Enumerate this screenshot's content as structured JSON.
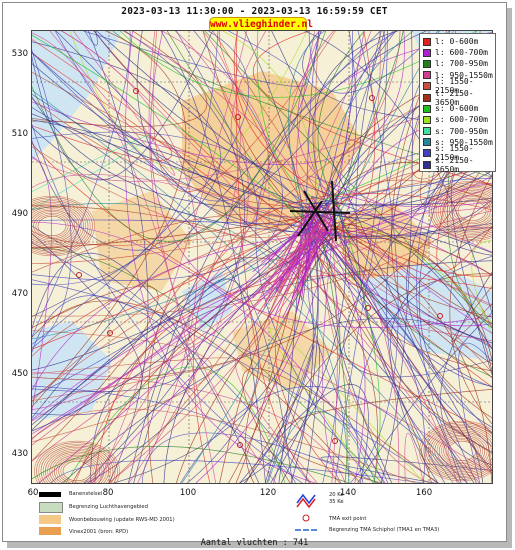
{
  "header": {
    "period": "2023-03-13 11:30:00 - 2023-03-13 16:59:59 CET",
    "site": "www.vlieghinder.nl"
  },
  "axes": {
    "y_ticks": [
      "530",
      "510",
      "490",
      "470",
      "450",
      "430"
    ],
    "x_ticks": [
      "60",
      "80",
      "100",
      "120",
      "140",
      "160"
    ]
  },
  "legend": [
    {
      "label": "l: 0-600m",
      "color": "#e02020"
    },
    {
      "label": "l: 600-700m",
      "color": "#b020d0"
    },
    {
      "label": "l: 700-950m",
      "color": "#208020"
    },
    {
      "label": "l: 950-1550m",
      "color": "#d04090"
    },
    {
      "label": "l: 1550-2150m",
      "color": "#c85040"
    },
    {
      "label": "l: 2150-3650m",
      "color": "#a03018"
    },
    {
      "label": "s: 0-600m",
      "color": "#20c020"
    },
    {
      "label": "s: 600-700m",
      "color": "#a0e020"
    },
    {
      "label": "s: 700-950m",
      "color": "#40e0a0"
    },
    {
      "label": "s: 950-1550m",
      "color": "#208898"
    },
    {
      "label": "s: 1550-2150m",
      "color": "#4040c0"
    },
    {
      "label": "s: 2150-3650m",
      "color": "#303090"
    }
  ],
  "map_key": {
    "runways": "Banenstelsel",
    "airport_boundary": "Begrenzing Luchthavengebied",
    "housing": "Woonbebouwing (update RWS-MD 2001)",
    "vinex": "Vinex2001 (bron: RPD)",
    "ke_label": "20 Ke\n35 Ke",
    "tma_exit": "TMA exit point",
    "tma_boundary": "Begrenzing TMA Schiphol  (TMA1 en TMA3)"
  },
  "footer": {
    "flights": "Aantal vluchten : 741"
  }
}
